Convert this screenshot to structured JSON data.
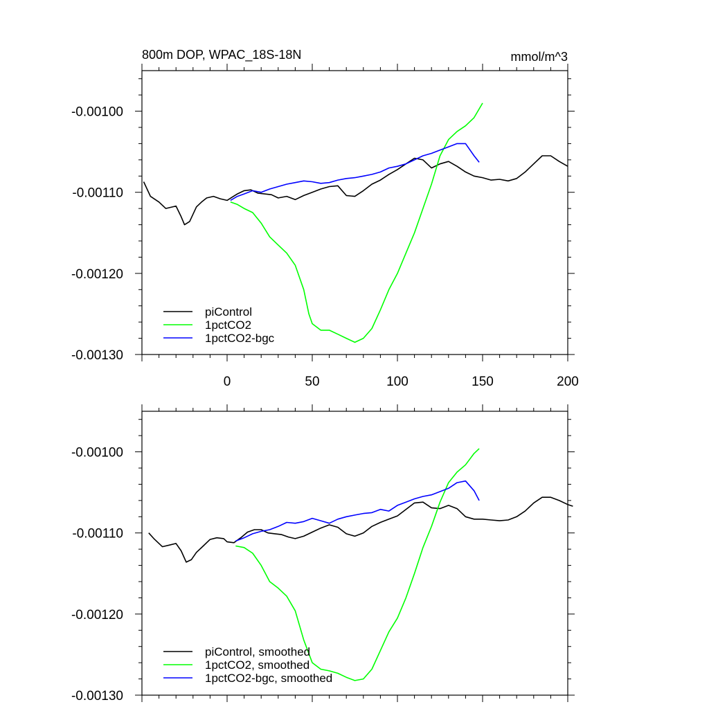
{
  "chart_data": [
    {
      "type": "line",
      "title": "800m DOP, WPAC_18S-18N",
      "units": "mmol/m^3",
      "xlim": [
        -50,
        200
      ],
      "ylim": [
        -0.0013,
        -0.00095
      ],
      "x_ticks": [
        0,
        50,
        100,
        150,
        200
      ],
      "y_ticks": [
        -0.001,
        -0.0011,
        -0.0012,
        -0.0013
      ],
      "y_tick_labels": [
        "-0.00100",
        "-0.00110",
        "-0.00120",
        "-0.00130"
      ],
      "x_tick_labels": [
        "0",
        "50",
        "100",
        "150",
        "200"
      ],
      "legend_position": "lower-left",
      "series": [
        {
          "name": "piControl",
          "color": "#000000",
          "x": [
            -49,
            -45,
            -40,
            -36,
            -30,
            -27,
            -25,
            -22,
            -18,
            -15,
            -12,
            -8,
            -4,
            0,
            3,
            6,
            10,
            14,
            18,
            22,
            26,
            30,
            35,
            40,
            45,
            50,
            55,
            60,
            65,
            70,
            75,
            80,
            85,
            90,
            95,
            100,
            105,
            110,
            115,
            120,
            125,
            130,
            135,
            140,
            145,
            150,
            155,
            160,
            165,
            170,
            175,
            180,
            185,
            190,
            195,
            200
          ],
          "y": [
            -0.001087,
            -0.001105,
            -0.001112,
            -0.00112,
            -0.001117,
            -0.00113,
            -0.00114,
            -0.001136,
            -0.001118,
            -0.001112,
            -0.001107,
            -0.001105,
            -0.001108,
            -0.00111,
            -0.001106,
            -0.001102,
            -0.001098,
            -0.001097,
            -0.001101,
            -0.001102,
            -0.001103,
            -0.001107,
            -0.001105,
            -0.001109,
            -0.001104,
            -0.0011,
            -0.001096,
            -0.001093,
            -0.001092,
            -0.001104,
            -0.001105,
            -0.001098,
            -0.00109,
            -0.001085,
            -0.001078,
            -0.001072,
            -0.001065,
            -0.001058,
            -0.00106,
            -0.00107,
            -0.001065,
            -0.001062,
            -0.001068,
            -0.001075,
            -0.00108,
            -0.001082,
            -0.001085,
            -0.001084,
            -0.001086,
            -0.001083,
            -0.001075,
            -0.001065,
            -0.001055,
            -0.001055,
            -0.001062,
            -0.001068
          ]
        },
        {
          "name": "1pctCO2",
          "color": "#00ff00",
          "x": [
            2,
            6,
            10,
            15,
            20,
            25,
            30,
            35,
            40,
            45,
            48,
            50,
            55,
            60,
            65,
            70,
            75,
            80,
            85,
            90,
            95,
            100,
            105,
            110,
            115,
            120,
            125,
            130,
            135,
            140,
            145,
            150
          ],
          "y": [
            -0.001112,
            -0.001115,
            -0.00112,
            -0.001125,
            -0.001138,
            -0.001155,
            -0.001165,
            -0.001175,
            -0.00119,
            -0.00122,
            -0.00125,
            -0.001262,
            -0.00127,
            -0.00127,
            -0.001275,
            -0.00128,
            -0.001285,
            -0.00128,
            -0.001268,
            -0.001245,
            -0.00122,
            -0.0012,
            -0.001175,
            -0.00115,
            -0.00112,
            -0.00109,
            -0.001055,
            -0.001035,
            -0.001025,
            -0.001018,
            -0.001008,
            -0.00099
          ]
        },
        {
          "name": "1pctCO2-bgc",
          "color": "#0000ff",
          "x": [
            2,
            6,
            10,
            15,
            20,
            25,
            30,
            35,
            40,
            45,
            50,
            55,
            60,
            65,
            70,
            75,
            80,
            85,
            90,
            95,
            100,
            105,
            110,
            115,
            120,
            125,
            130,
            135,
            140,
            145,
            148
          ],
          "y": [
            -0.00111,
            -0.001105,
            -0.001102,
            -0.001098,
            -0.0011,
            -0.001096,
            -0.001093,
            -0.00109,
            -0.001088,
            -0.001086,
            -0.001087,
            -0.001089,
            -0.001088,
            -0.001085,
            -0.001083,
            -0.001082,
            -0.00108,
            -0.001078,
            -0.001075,
            -0.00107,
            -0.001068,
            -0.001065,
            -0.00106,
            -0.001055,
            -0.001052,
            -0.001048,
            -0.001044,
            -0.00104,
            -0.00104,
            -0.001055,
            -0.001063
          ]
        }
      ]
    },
    {
      "type": "line",
      "xlim": [
        -50,
        200
      ],
      "ylim": [
        -0.0013,
        -0.00095
      ],
      "y_ticks": [
        -0.001,
        -0.0011,
        -0.0012,
        -0.0013
      ],
      "y_tick_labels": [
        "-0.00100",
        "-0.00110",
        "-0.00120",
        "-0.00130"
      ],
      "legend_position": "lower-left",
      "series": [
        {
          "name": "piControl, smoothed",
          "color": "#000000",
          "x": [
            -46,
            -43,
            -38,
            -34,
            -30,
            -27,
            -24,
            -21,
            -18,
            -14,
            -10,
            -6,
            -2,
            0,
            4,
            8,
            12,
            16,
            20,
            24,
            28,
            32,
            36,
            40,
            45,
            50,
            55,
            60,
            65,
            70,
            75,
            80,
            85,
            90,
            95,
            100,
            105,
            110,
            115,
            120,
            125,
            130,
            135,
            140,
            145,
            150,
            155,
            160,
            165,
            170,
            175,
            180,
            185,
            190,
            195,
            200,
            203
          ],
          "y": [
            -0.0011,
            -0.001107,
            -0.001117,
            -0.001115,
            -0.001113,
            -0.001122,
            -0.001136,
            -0.001133,
            -0.001124,
            -0.001116,
            -0.001108,
            -0.001106,
            -0.001107,
            -0.001111,
            -0.001112,
            -0.001106,
            -0.001099,
            -0.001096,
            -0.001096,
            -0.0011,
            -0.001101,
            -0.001102,
            -0.001105,
            -0.001107,
            -0.001104,
            -0.001099,
            -0.001094,
            -0.00109,
            -0.001093,
            -0.001101,
            -0.001104,
            -0.0011,
            -0.001092,
            -0.001087,
            -0.001083,
            -0.001079,
            -0.001071,
            -0.001063,
            -0.001062,
            -0.001069,
            -0.00107,
            -0.001066,
            -0.00107,
            -0.00108,
            -0.001083,
            -0.001083,
            -0.001084,
            -0.001085,
            -0.001084,
            -0.00108,
            -0.001073,
            -0.001063,
            -0.001056,
            -0.001056,
            -0.00106,
            -0.001065,
            -0.001067
          ]
        },
        {
          "name": "1pctCO2, smoothed",
          "color": "#00ff00",
          "x": [
            5,
            10,
            15,
            20,
            25,
            30,
            35,
            40,
            45,
            50,
            55,
            60,
            65,
            70,
            75,
            80,
            85,
            90,
            95,
            100,
            105,
            110,
            115,
            120,
            125,
            130,
            135,
            140,
            145,
            148
          ],
          "y": [
            -0.001116,
            -0.001118,
            -0.001125,
            -0.00114,
            -0.00116,
            -0.001168,
            -0.001178,
            -0.001196,
            -0.001232,
            -0.00126,
            -0.001268,
            -0.00127,
            -0.001273,
            -0.001278,
            -0.001282,
            -0.00128,
            -0.001268,
            -0.001245,
            -0.001222,
            -0.001205,
            -0.00118,
            -0.00115,
            -0.001118,
            -0.001092,
            -0.001062,
            -0.001038,
            -0.001025,
            -0.001016,
            -0.001002,
            -0.000996
          ]
        },
        {
          "name": "1pctCO2-bgc, smoothed",
          "color": "#0000ff",
          "x": [
            5,
            10,
            15,
            20,
            25,
            30,
            35,
            40,
            45,
            50,
            55,
            60,
            65,
            70,
            75,
            80,
            85,
            90,
            95,
            100,
            105,
            110,
            115,
            120,
            125,
            130,
            135,
            140,
            145,
            148
          ],
          "y": [
            -0.00111,
            -0.001106,
            -0.001101,
            -0.001098,
            -0.001096,
            -0.001092,
            -0.001087,
            -0.001088,
            -0.001086,
            -0.001082,
            -0.001085,
            -0.001088,
            -0.001083,
            -0.00108,
            -0.001078,
            -0.001076,
            -0.001075,
            -0.001071,
            -0.001073,
            -0.001066,
            -0.001062,
            -0.001058,
            -0.001055,
            -0.001053,
            -0.001049,
            -0.001045,
            -0.001038,
            -0.001036,
            -0.001048,
            -0.00106
          ]
        }
      ]
    }
  ]
}
